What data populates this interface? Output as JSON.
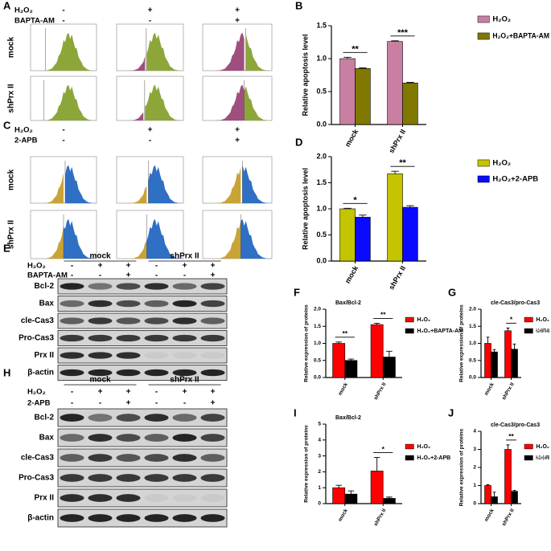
{
  "flow": [
    {
      "label": "A",
      "rows": [
        "mock",
        "shPrx II"
      ],
      "conditions": [
        {
          "name": "H₂O₂",
          "signs": [
            "-",
            "+",
            "+"
          ]
        },
        {
          "name": "BAPTA-AM",
          "signs": [
            "-",
            "-",
            "+"
          ]
        }
      ]
    },
    {
      "label": "C",
      "rows": [
        "mock",
        "shPrx II"
      ],
      "conditions": [
        {
          "name": "H₂O₂",
          "signs": [
            "-",
            "+",
            "+"
          ]
        },
        {
          "name": "2-APB",
          "signs": [
            "-",
            "-",
            "+"
          ]
        }
      ]
    }
  ],
  "blots": [
    {
      "label": "E",
      "groups": [
        "mock",
        "shPrx II"
      ],
      "conditions": [
        {
          "name": "H₂O₂",
          "signs": [
            "-",
            "+",
            "+",
            "-",
            "+",
            "+"
          ]
        },
        {
          "name": "BAPTA-AM",
          "signs": [
            "-",
            "-",
            "+",
            "-",
            "-",
            "+"
          ]
        }
      ],
      "proteins": [
        "Bcl-2",
        "Bax",
        "cle-Cas3",
        "Pro-Cas3",
        "Prx II",
        "β-actin"
      ]
    },
    {
      "label": "H",
      "groups": [
        "mock",
        "shPrx II"
      ],
      "conditions": [
        {
          "name": "H₂O₂",
          "signs": [
            "-",
            "+",
            "+",
            "-",
            "+",
            "+"
          ]
        },
        {
          "name": "2-APB",
          "signs": [
            "-",
            "-",
            "+",
            "-",
            "-",
            "+"
          ]
        }
      ],
      "proteins": [
        "Bcl-2",
        "Bax",
        "cle-Cas3",
        "Pro-Cas3",
        "Prx II",
        "β-actin"
      ]
    }
  ],
  "chart_data": [
    {
      "type": "bar",
      "panel": "B",
      "ylabel": "Relative apoptosis level",
      "categories": [
        "mock",
        "shPrx II"
      ],
      "series": [
        {
          "name": "H₂O₂",
          "color": "#c97fa2",
          "values": [
            1.0,
            1.26
          ],
          "errors": [
            0.02,
            0.01
          ]
        },
        {
          "name": "H₂O₂+BAPTA-AM",
          "color": "#807800",
          "values": [
            0.85,
            0.63
          ],
          "errors": [
            0.01,
            0.01
          ]
        }
      ],
      "significance": [
        "**",
        "***"
      ],
      "ylim": [
        0,
        1.5
      ],
      "yticks": [
        {
          "value": 0,
          "label": "0.0"
        },
        0.5,
        {
          "value": 1,
          "label": "1.0"
        },
        1.5
      ]
    },
    {
      "type": "bar",
      "panel": "D",
      "ylabel": "Relative apoptosis level",
      "categories": [
        "mock",
        "shPrx II"
      ],
      "series": [
        {
          "name": "H₂O₂",
          "color": "#c4c400",
          "values": [
            1.0,
            1.67
          ],
          "errors": [
            0.01,
            0.05
          ]
        },
        {
          "name": "H₂O₂+2-APB",
          "color": "#0a0aff",
          "values": [
            0.84,
            1.03
          ],
          "errors": [
            0.04,
            0.03
          ]
        }
      ],
      "significance": [
        "*",
        "**"
      ],
      "ylim": [
        0,
        2
      ],
      "yticks": [
        {
          "value": 0,
          "label": "0.0"
        },
        0.5,
        {
          "value": 1,
          "label": "1.0"
        },
        1.5,
        {
          "value": 2,
          "label": "2.0"
        }
      ]
    },
    {
      "type": "bar",
      "panel": "F",
      "title": "Bax/Bcl-2",
      "ylabel": "Relative expression of proteins",
      "categories": [
        "mock",
        "shPrx II"
      ],
      "series": [
        {
          "name": "H₂O₂",
          "color": "#ff0000",
          "values": [
            1.0,
            1.55
          ],
          "errors": [
            0.04,
            0.04
          ]
        },
        {
          "name": "H₂O₂+BAPTA-AM",
          "color": "#000000",
          "values": [
            0.5,
            0.6
          ],
          "errors": [
            0.04,
            0.17
          ]
        }
      ],
      "significance": [
        "**",
        "**"
      ],
      "ylim": [
        0,
        2
      ],
      "yticks": [
        {
          "value": 0,
          "label": "0.0"
        },
        0.5,
        {
          "value": 1,
          "label": "1.0"
        },
        1.5,
        {
          "value": 2,
          "label": "2.0"
        }
      ]
    },
    {
      "type": "bar",
      "panel": "G",
      "title": "cle-Cas3/pro-Cas3",
      "ylabel": "Relative expression of proteins",
      "categories": [
        "mock",
        "shPrx II"
      ],
      "series": [
        {
          "name": "H₂O₂",
          "color": "#ff0000",
          "values": [
            1.0,
            1.37
          ],
          "errors": [
            0.18,
            0.08
          ]
        },
        {
          "name": "H₂O₂+BAPTA-AM",
          "color": "#000000",
          "values": [
            0.75,
            0.83
          ],
          "errors": [
            0.07,
            0.15
          ]
        }
      ],
      "significance": [
        null,
        "*"
      ],
      "ylim": [
        0,
        2
      ],
      "yticks": [
        {
          "value": 0,
          "label": "0.0"
        },
        0.5,
        {
          "value": 1,
          "label": "1.0"
        },
        1.5,
        {
          "value": 2,
          "label": "2.0"
        }
      ]
    },
    {
      "type": "bar",
      "panel": "I",
      "title": "Bax/Bcl-2",
      "ylabel": "Relative expression of proteins",
      "categories": [
        "mock",
        "shPrx II"
      ],
      "series": [
        {
          "name": "H₂O₂",
          "color": "#ff0000",
          "values": [
            1.0,
            2.05
          ],
          "errors": [
            0.15,
            0.85
          ]
        },
        {
          "name": "H₂O₂+2-APB",
          "color": "#000000",
          "values": [
            0.6,
            0.33
          ],
          "errors": [
            0.2,
            0.08
          ]
        }
      ],
      "significance": [
        null,
        "*"
      ],
      "ylim": [
        0,
        5
      ],
      "yticks": [
        0,
        1,
        2,
        3,
        4,
        5
      ]
    },
    {
      "type": "bar",
      "panel": "J",
      "title": "cle-Cas3/pro-Cas3",
      "ylabel": "Relative expression of proteins",
      "categories": [
        "mock",
        "shPrx II"
      ],
      "series": [
        {
          "name": "H₂O₂",
          "color": "#ff0000",
          "values": [
            1.0,
            3.0
          ],
          "errors": [
            0.05,
            0.25
          ]
        },
        {
          "name": "H₂O₂+2-APB",
          "color": "#000000",
          "values": [
            0.38,
            0.68
          ],
          "errors": [
            0.25,
            0.05
          ]
        }
      ],
      "significance": [
        null,
        "**"
      ],
      "ylim": [
        0,
        4
      ],
      "yticks": [
        0,
        1,
        2,
        3,
        4
      ]
    }
  ]
}
